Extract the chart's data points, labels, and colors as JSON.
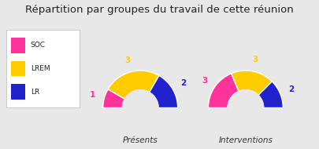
{
  "title": "Répartition par groupes du travail de cette réunion",
  "title_fontsize": 9.5,
  "background_color": "#e8e8e8",
  "legend_items": [
    {
      "label": "SOC",
      "color": "#ff3399"
    },
    {
      "label": "LREM",
      "color": "#ffcc00"
    },
    {
      "label": "LR",
      "color": "#2222cc"
    }
  ],
  "charts": [
    {
      "title": "Présents",
      "data": [
        {
          "label": "SOC",
          "value": 1,
          "color": "#ff3399"
        },
        {
          "label": "LREM",
          "value": 3,
          "color": "#ffcc00"
        },
        {
          "label": "LR",
          "value": 2,
          "color": "#2222cc"
        }
      ]
    },
    {
      "title": "Interventions",
      "data": [
        {
          "label": "SOC",
          "value": 3,
          "color": "#ff3399"
        },
        {
          "label": "LREM",
          "value": 3,
          "color": "#ffcc00"
        },
        {
          "label": "LR",
          "value": 2,
          "color": "#2222cc"
        }
      ]
    }
  ],
  "label_colors": {
    "SOC": "#ff3399",
    "LREM": "#ffcc00",
    "LR": "#2222cc"
  }
}
